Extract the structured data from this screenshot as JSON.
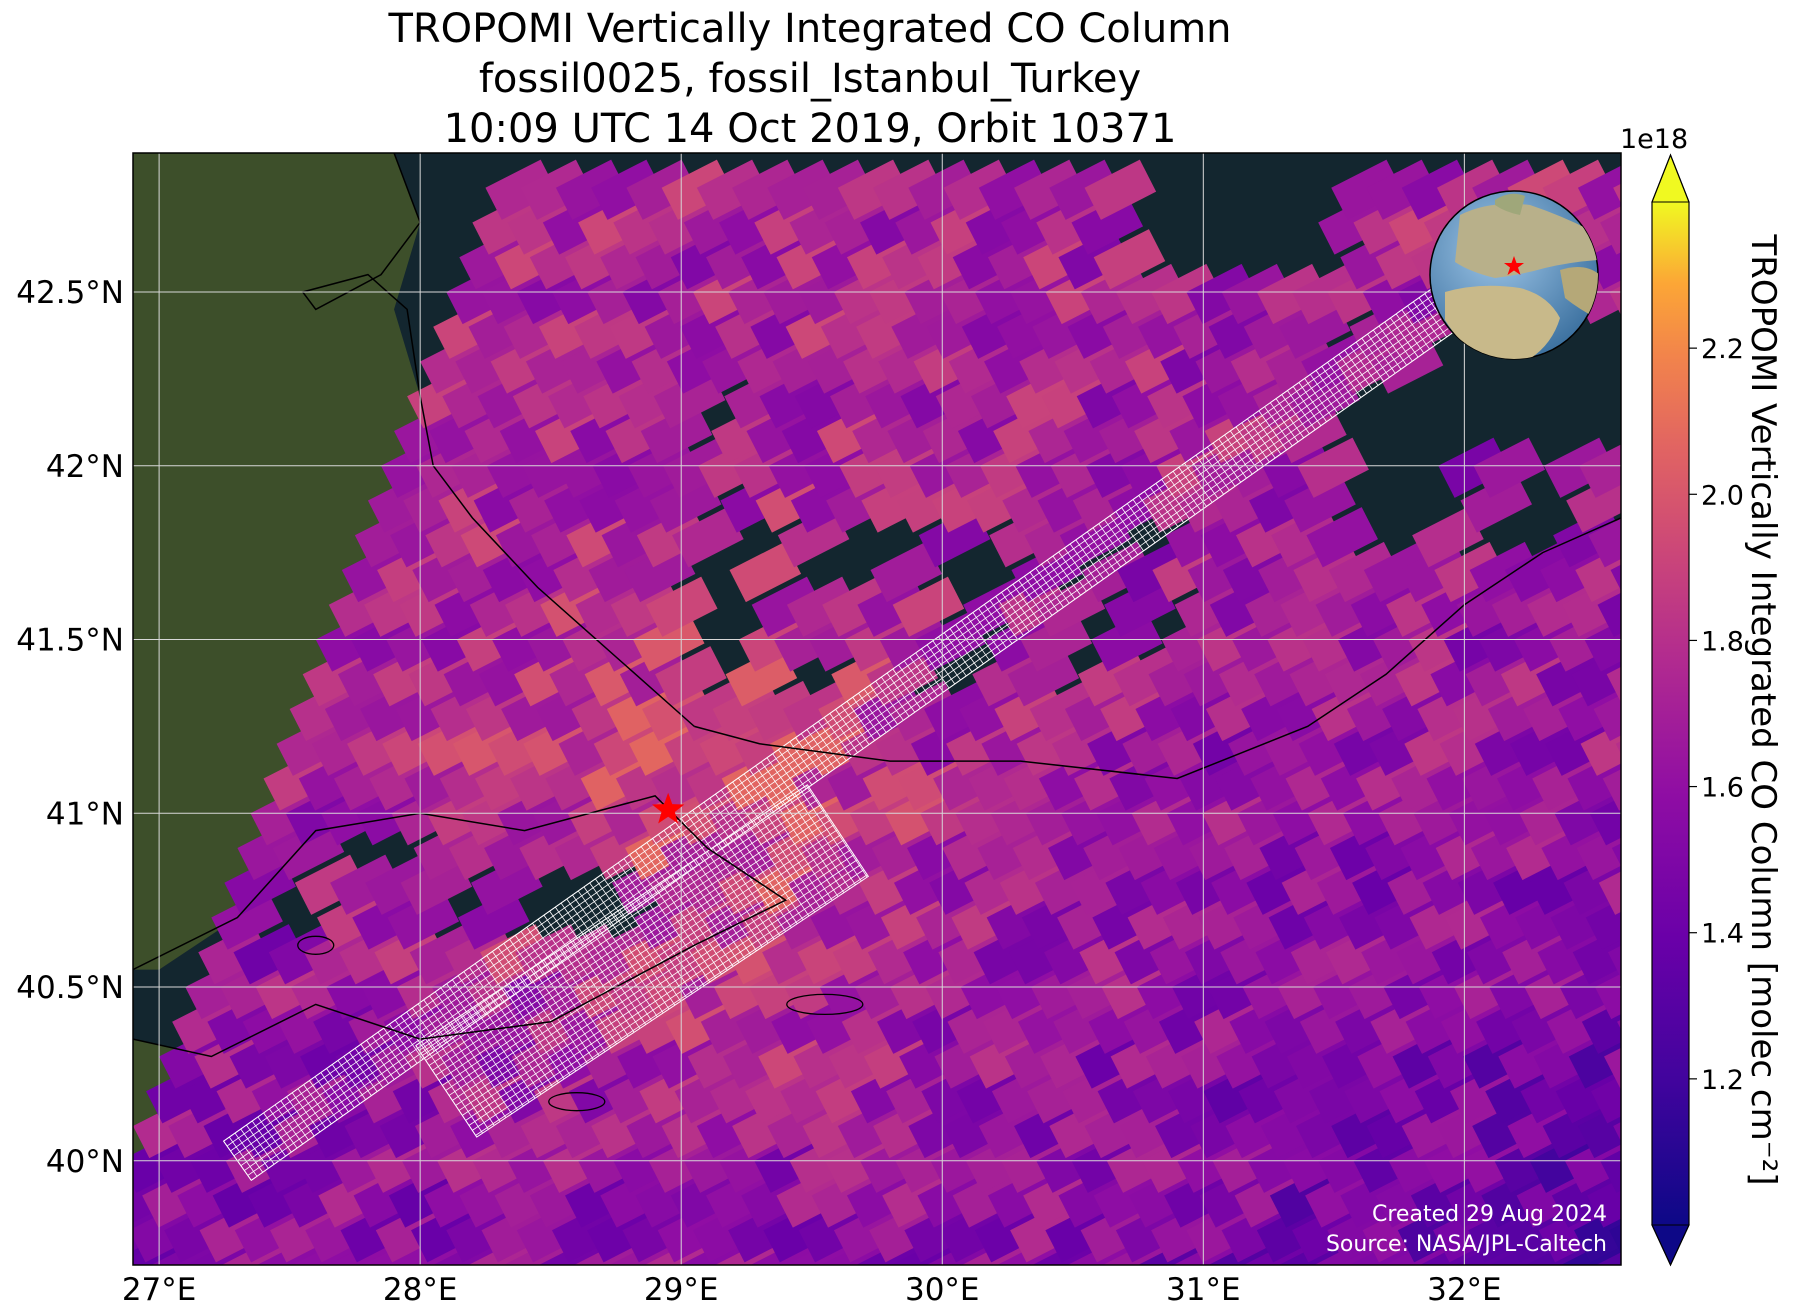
{
  "title": {
    "line1": "TROPOMI Vertically Integrated CO Column",
    "line2": "fossil0025, fossil_Istanbul_Turkey",
    "line3": "10:09 UTC 14 Oct 2019, Orbit 10371"
  },
  "credits": {
    "created": "Created 29 Aug 2024",
    "source": "Source: NASA/JPL-Caltech"
  },
  "colorbar": {
    "label": "TROPOMI Vertically Integrated CO Column [molec cm⁻²]",
    "exponent": "1e18",
    "colormap": "plasma",
    "min": 1.0,
    "max": 2.4,
    "ticks": [
      "1.2",
      "1.4",
      "1.6",
      "1.8",
      "2.0",
      "2.2"
    ],
    "extend": "both"
  },
  "colors": {
    "water": "#13262f",
    "land": "#3d4f2a",
    "gridline": "#d8d8d8",
    "target_marker": "#ff0000",
    "cloud_pixel_outline_land": "#ffffff"
  },
  "chart_data": {
    "type": "heatmap",
    "projection": "map",
    "xlabel": "",
    "ylabel": "",
    "xlim": [
      26.9,
      32.6
    ],
    "ylim": [
      39.7,
      42.9
    ],
    "x_ticks": [
      {
        "value": 27,
        "label": "27°E"
      },
      {
        "value": 28,
        "label": "28°E"
      },
      {
        "value": 29,
        "label": "29°E"
      },
      {
        "value": 30,
        "label": "30°E"
      },
      {
        "value": 31,
        "label": "31°E"
      },
      {
        "value": 32,
        "label": "32°E"
      }
    ],
    "y_ticks": [
      {
        "value": 40.0,
        "label": "40°N"
      },
      {
        "value": 40.5,
        "label": "40.5°N"
      },
      {
        "value": 41.0,
        "label": "41°N"
      },
      {
        "value": 41.5,
        "label": "41.5°N"
      },
      {
        "value": 42.0,
        "label": "42°N"
      },
      {
        "value": 42.5,
        "label": "42.5°N"
      }
    ],
    "grid": true,
    "units": "molec cm⁻² (×1e18)",
    "target": {
      "name": "fossil_Istanbul_Turkey",
      "lon": 28.95,
      "lat": 41.01,
      "marker": "star"
    },
    "value_range": [
      1.0,
      2.4
    ],
    "inset": {
      "type": "globe",
      "position": "top-right",
      "marker_lon": 28.95,
      "marker_lat": 41.01
    }
  }
}
